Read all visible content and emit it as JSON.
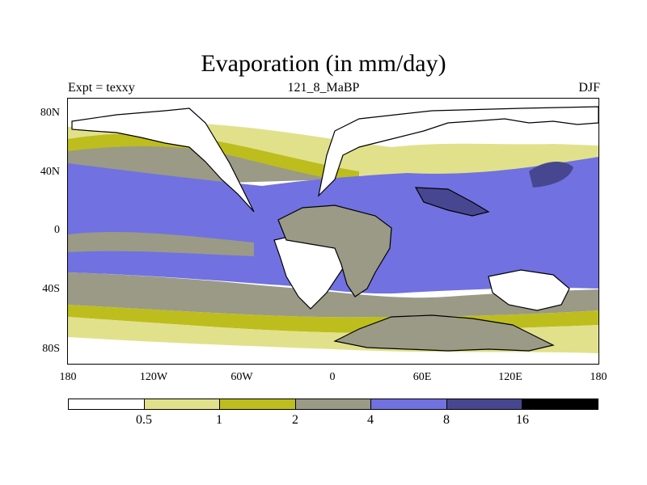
{
  "title": "Evaporation (in mm/day)",
  "subtitle_left": "Expt = texxy",
  "subtitle_center": "121_8_MaBP",
  "subtitle_right": "DJF",
  "lat_labels": [
    "80N",
    "40N",
    "0",
    "40S",
    "80S"
  ],
  "lon_labels": [
    "180",
    "120W",
    "60W",
    "0",
    "60E",
    "120E",
    "180"
  ],
  "colorbar": {
    "colors": [
      "#ffffff",
      "#e1e18c",
      "#bdbd1e",
      "#9a9a87",
      "#7171e1",
      "#474791",
      "#000000"
    ],
    "labels": [
      "0.5",
      "1",
      "2",
      "4",
      "8",
      "16"
    ]
  },
  "chart_data": {
    "type": "heatmap",
    "title": "Evaporation (in mm/day)",
    "subtitle": "121_8_MaBP",
    "experiment": "texxy",
    "season": "DJF",
    "units": "mm/day",
    "xlim": [
      -180,
      180
    ],
    "ylim": [
      -90,
      90
    ],
    "levels": [
      0.5,
      1,
      2,
      4,
      8,
      16
    ]
  }
}
